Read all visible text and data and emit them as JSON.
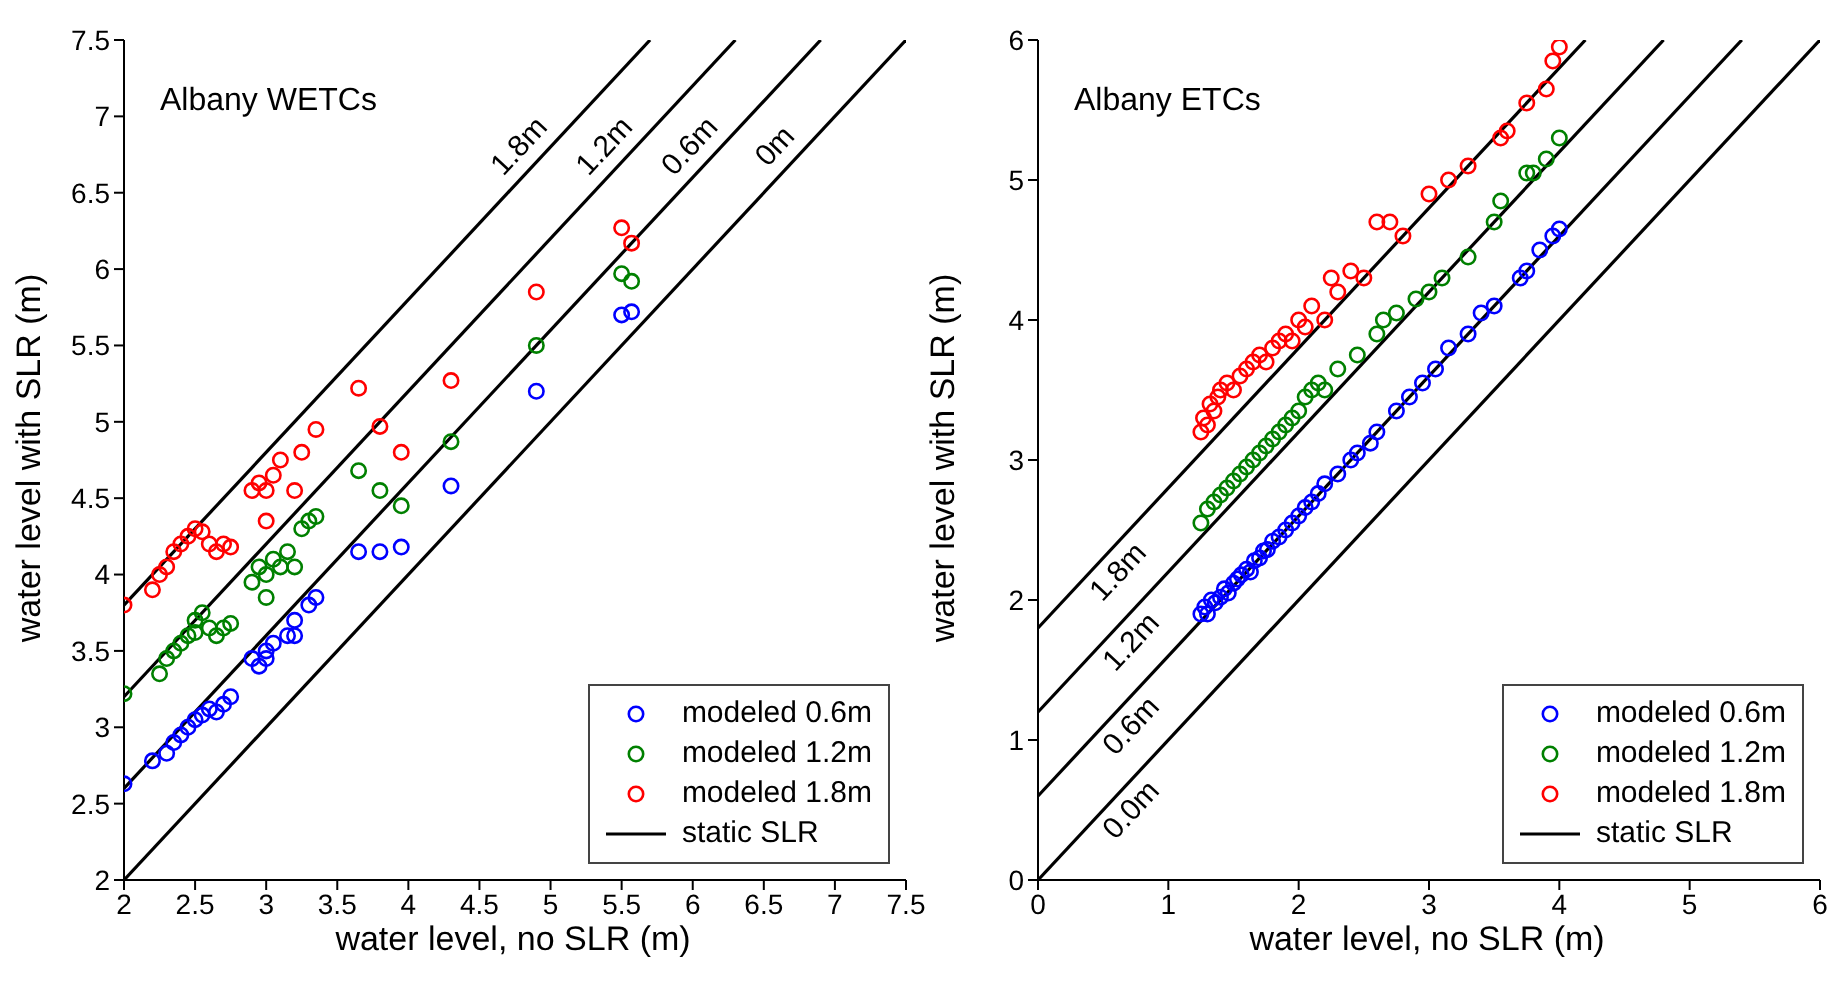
{
  "chart_data": [
    {
      "type": "scatter",
      "title": "Albany WETCs",
      "xlabel": "water level, no SLR (m)",
      "ylabel": "water level with SLR (m)",
      "xlim": [
        2,
        7.5
      ],
      "ylim": [
        2,
        7.5
      ],
      "xticks": [
        2,
        2.5,
        3,
        3.5,
        4,
        4.5,
        5,
        5.5,
        6,
        6.5,
        7,
        7.5
      ],
      "yticks": [
        2,
        2.5,
        3,
        3.5,
        4,
        4.5,
        5,
        5.5,
        6,
        6.5,
        7,
        7.5
      ],
      "legend": "bottom right",
      "series": [
        {
          "name": "modeled 0.6m",
          "color": "#0000ff",
          "marker": "circle",
          "x": [
            2.0,
            2.2,
            2.3,
            2.35,
            2.4,
            2.45,
            2.5,
            2.55,
            2.6,
            2.65,
            2.7,
            2.75,
            2.9,
            2.95,
            3.0,
            3.0,
            3.05,
            3.15,
            3.2,
            3.2,
            3.3,
            3.35,
            3.65,
            3.8,
            3.95,
            4.3,
            4.9,
            5.5,
            5.57
          ],
          "values": [
            2.63,
            2.78,
            2.83,
            2.9,
            2.95,
            3.0,
            3.05,
            3.08,
            3.12,
            3.1,
            3.15,
            3.2,
            3.45,
            3.4,
            3.5,
            3.45,
            3.55,
            3.6,
            3.6,
            3.7,
            3.8,
            3.85,
            4.15,
            4.15,
            4.18,
            4.58,
            5.2,
            5.7,
            5.72
          ]
        },
        {
          "name": "modeled 1.2m",
          "color": "#008000",
          "marker": "circle",
          "x": [
            2.0,
            2.25,
            2.3,
            2.35,
            2.4,
            2.45,
            2.5,
            2.5,
            2.55,
            2.6,
            2.65,
            2.7,
            2.75,
            2.9,
            2.95,
            3.0,
            3.0,
            3.05,
            3.1,
            3.15,
            3.2,
            3.25,
            3.3,
            3.35,
            3.65,
            3.8,
            3.95,
            4.3,
            4.9,
            5.5,
            5.57
          ],
          "values": [
            3.22,
            3.35,
            3.45,
            3.5,
            3.55,
            3.6,
            3.7,
            3.62,
            3.75,
            3.65,
            3.6,
            3.65,
            3.68,
            3.95,
            4.05,
            4.0,
            3.85,
            4.1,
            4.05,
            4.15,
            4.05,
            4.3,
            4.35,
            4.38,
            4.68,
            4.55,
            4.45,
            4.87,
            5.5,
            5.97,
            5.92
          ]
        },
        {
          "name": "modeled 1.8m",
          "color": "#ff0000",
          "marker": "circle",
          "x": [
            2.0,
            2.2,
            2.25,
            2.3,
            2.35,
            2.4,
            2.45,
            2.5,
            2.55,
            2.6,
            2.65,
            2.7,
            2.75,
            2.9,
            2.95,
            3.0,
            3.0,
            3.05,
            3.1,
            3.2,
            3.25,
            3.35,
            3.65,
            3.8,
            3.95,
            4.3,
            4.9,
            5.5,
            5.57
          ],
          "values": [
            3.8,
            3.9,
            4.0,
            4.05,
            4.15,
            4.2,
            4.25,
            4.3,
            4.28,
            4.2,
            4.15,
            4.2,
            4.18,
            4.55,
            4.6,
            4.55,
            4.35,
            4.65,
            4.75,
            4.55,
            4.8,
            4.95,
            5.22,
            4.97,
            4.8,
            5.27,
            5.85,
            6.27,
            6.17
          ]
        },
        {
          "name": "static SLR",
          "type": "line",
          "color": "#000000",
          "x": [
            2,
            7.5
          ],
          "values": [
            2,
            7.5
          ]
        },
        {
          "type": "line",
          "color": "#000000",
          "x": [
            2,
            6.9
          ],
          "values": [
            2.6,
            7.5
          ]
        },
        {
          "type": "line",
          "color": "#000000",
          "x": [
            2,
            6.3
          ],
          "values": [
            3.2,
            7.5
          ]
        },
        {
          "type": "line",
          "color": "#000000",
          "x": [
            2,
            5.7
          ],
          "values": [
            3.8,
            7.5
          ]
        }
      ],
      "annotations": [
        {
          "text": "1.8m",
          "x": 4.9,
          "y": 6.7
        },
        {
          "text": "1.2m",
          "x": 5.5,
          "y": 6.7
        },
        {
          "text": "0.6m",
          "x": 6.1,
          "y": 6.7
        },
        {
          "text": "0m",
          "x": 6.7,
          "y": 6.7
        }
      ]
    },
    {
      "type": "scatter",
      "title": "Albany ETCs",
      "xlabel": "water level, no SLR (m)",
      "ylabel": "water level with SLR (m)",
      "xlim": [
        0,
        6
      ],
      "ylim": [
        0,
        6
      ],
      "xticks": [
        0,
        1,
        2,
        3,
        4,
        5,
        6
      ],
      "yticks": [
        0,
        1,
        2,
        3,
        4,
        5,
        6
      ],
      "legend": "bottom right",
      "series": [
        {
          "name": "modeled 0.6m",
          "color": "#0000ff",
          "marker": "circle",
          "x": [
            1.25,
            1.28,
            1.3,
            1.33,
            1.36,
            1.4,
            1.43,
            1.46,
            1.5,
            1.53,
            1.56,
            1.6,
            1.63,
            1.66,
            1.7,
            1.73,
            1.76,
            1.8,
            1.85,
            1.9,
            1.95,
            2.0,
            2.05,
            2.1,
            2.15,
            2.2,
            2.3,
            2.4,
            2.45,
            2.55,
            2.6,
            2.75,
            2.85,
            2.95,
            3.05,
            3.15,
            3.3,
            3.4,
            3.5,
            3.7,
            3.75,
            3.85,
            3.95,
            4.0
          ],
          "values": [
            1.9,
            1.95,
            1.9,
            2.0,
            1.98,
            2.02,
            2.08,
            2.05,
            2.12,
            2.15,
            2.18,
            2.22,
            2.2,
            2.28,
            2.3,
            2.35,
            2.36,
            2.42,
            2.45,
            2.5,
            2.55,
            2.6,
            2.66,
            2.7,
            2.76,
            2.83,
            2.9,
            3.0,
            3.05,
            3.12,
            3.2,
            3.35,
            3.45,
            3.55,
            3.65,
            3.8,
            3.9,
            4.05,
            4.1,
            4.3,
            4.35,
            4.5,
            4.6,
            4.65
          ]
        },
        {
          "name": "modeled 1.2m",
          "color": "#008000",
          "marker": "circle",
          "x": [
            1.25,
            1.3,
            1.35,
            1.4,
            1.45,
            1.5,
            1.55,
            1.6,
            1.65,
            1.7,
            1.75,
            1.8,
            1.85,
            1.9,
            1.95,
            2.0,
            2.05,
            2.1,
            2.15,
            2.2,
            2.3,
            2.45,
            2.6,
            2.65,
            2.75,
            2.9,
            3.0,
            3.1,
            3.3,
            3.5,
            3.55,
            3.75,
            3.8,
            3.9,
            4.0
          ],
          "values": [
            2.55,
            2.65,
            2.7,
            2.75,
            2.8,
            2.85,
            2.9,
            2.95,
            3.0,
            3.05,
            3.1,
            3.15,
            3.2,
            3.25,
            3.3,
            3.35,
            3.45,
            3.5,
            3.55,
            3.5,
            3.65,
            3.75,
            3.9,
            4.0,
            4.05,
            4.15,
            4.2,
            4.3,
            4.45,
            4.7,
            4.85,
            5.05,
            5.05,
            5.15,
            5.3
          ]
        },
        {
          "name": "modeled 1.8m",
          "color": "#ff0000",
          "marker": "circle",
          "x": [
            1.25,
            1.27,
            1.3,
            1.32,
            1.35,
            1.38,
            1.4,
            1.45,
            1.5,
            1.55,
            1.6,
            1.65,
            1.7,
            1.75,
            1.8,
            1.85,
            1.9,
            1.95,
            2.0,
            2.05,
            2.1,
            2.2,
            2.25,
            2.3,
            2.4,
            2.5,
            2.6,
            2.7,
            2.8,
            3.0,
            3.15,
            3.3,
            3.55,
            3.6,
            3.75,
            3.9,
            3.95,
            4.0
          ],
          "values": [
            3.2,
            3.3,
            3.25,
            3.4,
            3.35,
            3.45,
            3.5,
            3.55,
            3.5,
            3.6,
            3.65,
            3.7,
            3.75,
            3.7,
            3.8,
            3.85,
            3.9,
            3.85,
            4.0,
            3.95,
            4.1,
            4.0,
            4.3,
            4.2,
            4.35,
            4.3,
            4.7,
            4.7,
            4.6,
            4.9,
            5.0,
            5.1,
            5.3,
            5.35,
            5.55,
            5.65,
            5.85,
            5.95
          ]
        },
        {
          "name": "static SLR",
          "type": "line",
          "color": "#000000",
          "x": [
            0,
            6
          ],
          "values": [
            0,
            6
          ]
        },
        {
          "type": "line",
          "color": "#000000",
          "x": [
            0,
            5.4
          ],
          "values": [
            0.6,
            6
          ]
        },
        {
          "type": "line",
          "color": "#000000",
          "x": [
            0,
            4.8
          ],
          "values": [
            1.2,
            6
          ]
        },
        {
          "type": "line",
          "color": "#000000",
          "x": [
            0,
            4.2
          ],
          "values": [
            1.8,
            6
          ]
        }
      ],
      "annotations": [
        {
          "text": "1.8m",
          "x": 0.5,
          "y": 2.3
        },
        {
          "text": "1.2m",
          "x": 0.6,
          "y": 1.8
        },
        {
          "text": "0.6m",
          "x": 0.6,
          "y": 1.2
        },
        {
          "text": "0.0m",
          "x": 0.6,
          "y": 0.6
        }
      ]
    }
  ]
}
